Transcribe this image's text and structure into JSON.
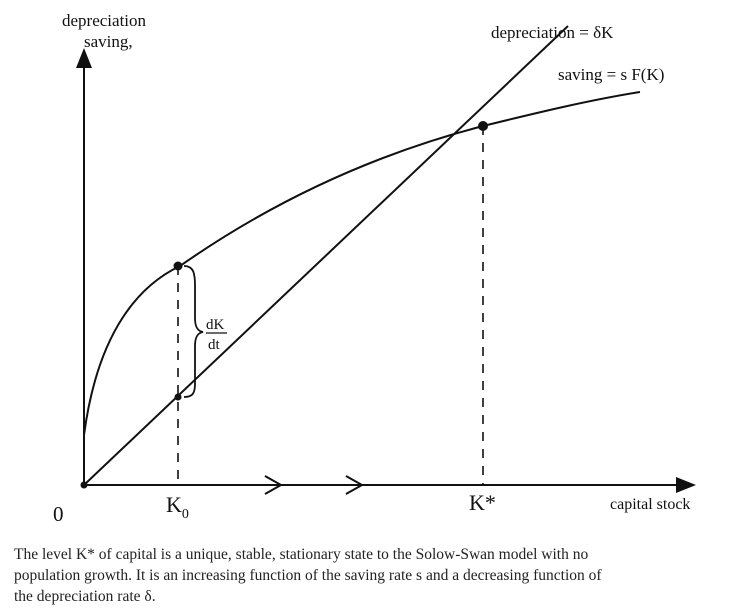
{
  "diagram": {
    "y_axis_label_line1": "depreciation",
    "y_axis_label_line2": "saving,",
    "x_axis_label": "capital stock",
    "origin_label": "0",
    "depreciation_label": "depreciation = δK",
    "saving_label": "saving = s F(K)",
    "k0_label": "K",
    "k0_subscript": "0",
    "kstar_label": "K*",
    "gap_label_numerator": "dK",
    "gap_label_denominator": "dt"
  },
  "caption": {
    "line1": "The level K* of capital is a unique, stable, stationary state to the Solow-Swan model with no",
    "line2": "population growth. It is an increasing function of the saving rate s and a decreasing function of",
    "line3": "the depreciation rate δ."
  }
}
